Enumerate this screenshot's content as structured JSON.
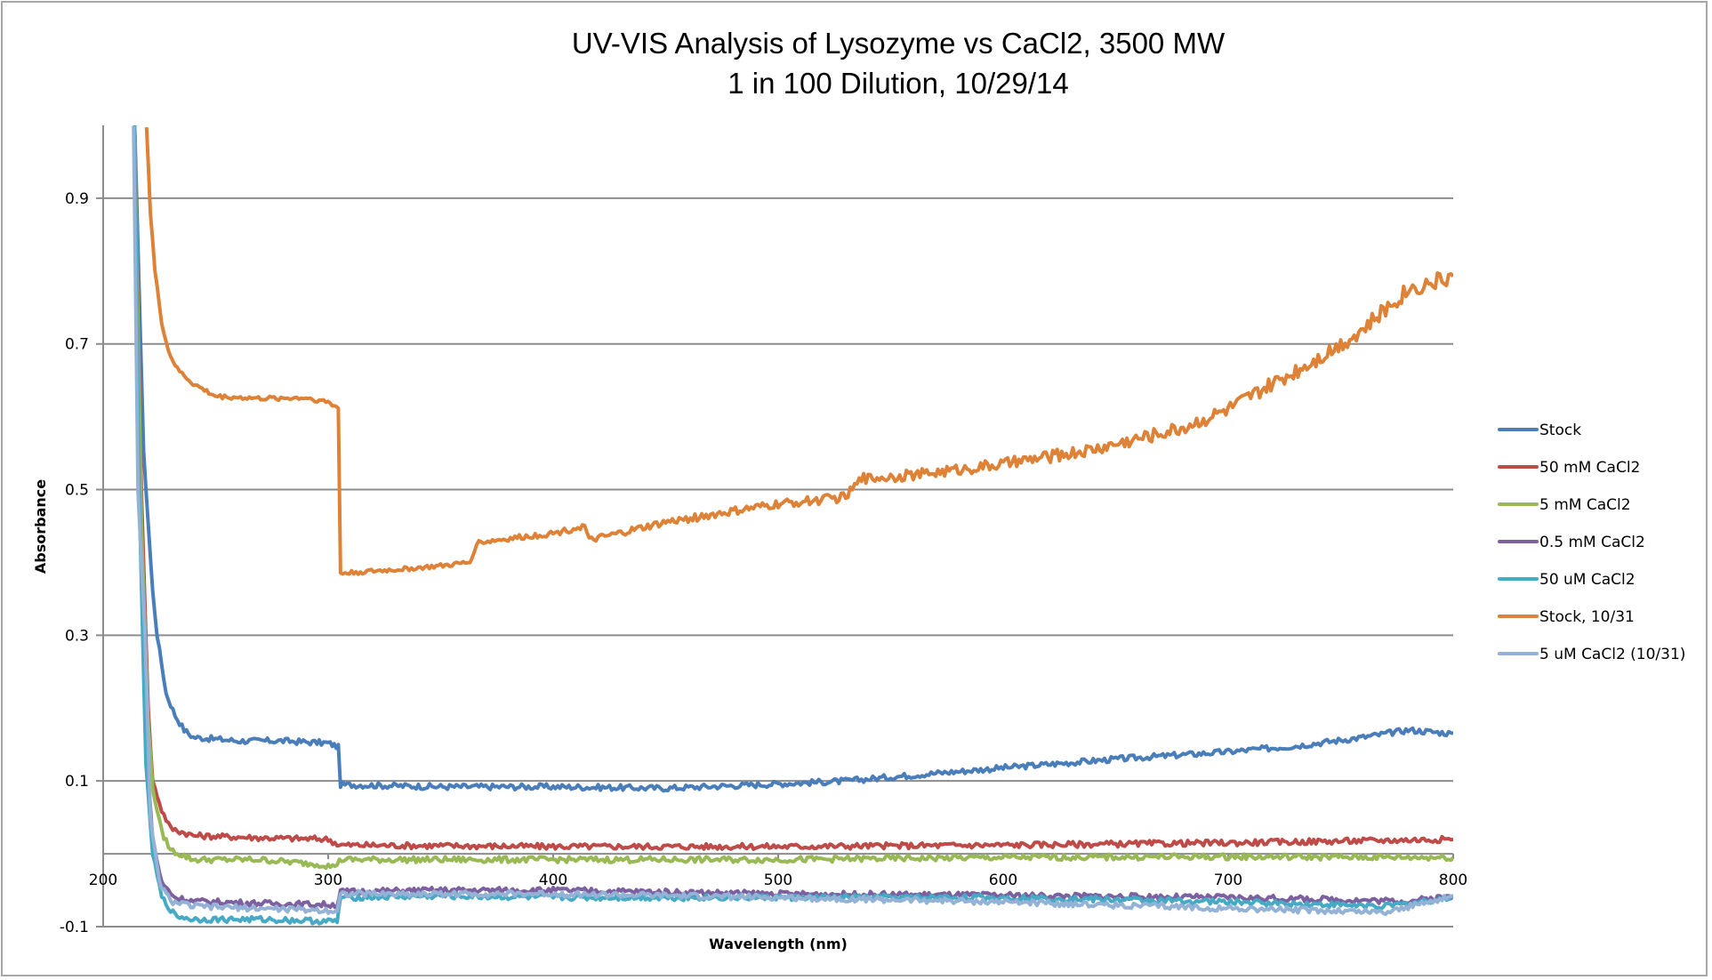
{
  "chart_data": {
    "type": "line",
    "title": "UV-VIS Analysis of Lysozyme vs CaCl2, 3500 MW",
    "subtitle": "1 in 100 Dilution, 10/29/14",
    "xlabel": "Wavelength (nm)",
    "ylabel": "Absorbance",
    "xlim": [
      200,
      800
    ],
    "ylim": [
      -0.1,
      1.0
    ],
    "x_ticks": [
      "200",
      "300",
      "400",
      "500",
      "600",
      "700",
      "800"
    ],
    "y_ticks": [
      "-0.1",
      "0.1",
      "0.3",
      "0.5",
      "0.7",
      "0.9"
    ],
    "grid": "horizontal",
    "legend_position": "right",
    "series": [
      {
        "name": "Stock",
        "color": "#4A7EBB",
        "points": [
          [
            214,
            1.0
          ],
          [
            218,
            0.55
          ],
          [
            222,
            0.36
          ],
          [
            224,
            0.3
          ],
          [
            228,
            0.22
          ],
          [
            232,
            0.19
          ],
          [
            236,
            0.17
          ],
          [
            240,
            0.16
          ],
          [
            260,
            0.155
          ],
          [
            280,
            0.155
          ],
          [
            300,
            0.152
          ],
          [
            304.5,
            0.147
          ],
          [
            305.5,
            0.095
          ],
          [
            350,
            0.092
          ],
          [
            400,
            0.092
          ],
          [
            450,
            0.09
          ],
          [
            500,
            0.096
          ],
          [
            530,
            0.1
          ],
          [
            560,
            0.108
          ],
          [
            600,
            0.118
          ],
          [
            650,
            0.13
          ],
          [
            700,
            0.14
          ],
          [
            730,
            0.148
          ],
          [
            760,
            0.16
          ],
          [
            780,
            0.17
          ],
          [
            800,
            0.165
          ]
        ]
      },
      {
        "name": "50 mM CaCl2",
        "color": "#BE4B48",
        "points": [
          [
            214,
            1.0
          ],
          [
            217,
            0.5
          ],
          [
            220,
            0.2
          ],
          [
            222,
            0.1
          ],
          [
            226,
            0.06
          ],
          [
            230,
            0.035
          ],
          [
            240,
            0.025
          ],
          [
            270,
            0.022
          ],
          [
            300,
            0.02
          ],
          [
            305,
            0.012
          ],
          [
            400,
            0.01
          ],
          [
            500,
            0.01
          ],
          [
            600,
            0.012
          ],
          [
            700,
            0.015
          ],
          [
            800,
            0.02
          ]
        ]
      },
      {
        "name": "5 mM CaCl2",
        "color": "#98B954",
        "points": [
          [
            214,
            1.0
          ],
          [
            217,
            0.45
          ],
          [
            220,
            0.18
          ],
          [
            222,
            0.09
          ],
          [
            226,
            0.03
          ],
          [
            230,
            0.005
          ],
          [
            240,
            -0.008
          ],
          [
            270,
            -0.008
          ],
          [
            298,
            -0.015
          ],
          [
            302,
            -0.018
          ],
          [
            306,
            -0.008
          ],
          [
            400,
            -0.008
          ],
          [
            500,
            -0.008
          ],
          [
            600,
            -0.005
          ],
          [
            700,
            -0.004
          ],
          [
            800,
            -0.005
          ]
        ]
      },
      {
        "name": "0.5 mM CaCl2",
        "color": "#7D60A0",
        "points": [
          [
            214,
            1.0
          ],
          [
            216,
            0.5
          ],
          [
            219,
            0.15
          ],
          [
            222,
            0.02
          ],
          [
            226,
            -0.04
          ],
          [
            232,
            -0.06
          ],
          [
            240,
            -0.065
          ],
          [
            270,
            -0.068
          ],
          [
            304,
            -0.07
          ],
          [
            305.5,
            -0.052
          ],
          [
            350,
            -0.05
          ],
          [
            400,
            -0.05
          ],
          [
            500,
            -0.055
          ],
          [
            600,
            -0.057
          ],
          [
            700,
            -0.06
          ],
          [
            780,
            -0.065
          ],
          [
            800,
            -0.058
          ]
        ]
      },
      {
        "name": "50 uM CaCl2",
        "color": "#46AAC5",
        "points": [
          [
            214,
            1.0
          ],
          [
            216,
            0.5
          ],
          [
            219,
            0.12
          ],
          [
            222,
            0.0
          ],
          [
            226,
            -0.06
          ],
          [
            232,
            -0.085
          ],
          [
            240,
            -0.09
          ],
          [
            270,
            -0.09
          ],
          [
            304,
            -0.093
          ],
          [
            305.5,
            -0.06
          ],
          [
            350,
            -0.058
          ],
          [
            400,
            -0.06
          ],
          [
            500,
            -0.06
          ],
          [
            600,
            -0.06
          ],
          [
            700,
            -0.066
          ],
          [
            770,
            -0.072
          ],
          [
            800,
            -0.06
          ]
        ]
      },
      {
        "name": "Stock, 10/31",
        "color": "#DD8236",
        "points": [
          [
            219.3,
            1.0
          ],
          [
            221,
            0.88
          ],
          [
            223,
            0.8
          ],
          [
            226,
            0.73
          ],
          [
            229,
            0.69
          ],
          [
            233,
            0.665
          ],
          [
            240,
            0.645
          ],
          [
            250,
            0.628
          ],
          [
            270,
            0.625
          ],
          [
            290,
            0.626
          ],
          [
            300,
            0.62
          ],
          [
            304.5,
            0.612
          ],
          [
            305.5,
            0.385
          ],
          [
            330,
            0.39
          ],
          [
            350,
            0.395
          ],
          [
            363,
            0.4
          ],
          [
            366,
            0.427
          ],
          [
            400,
            0.44
          ],
          [
            414,
            0.45
          ],
          [
            416,
            0.43
          ],
          [
            450,
            0.455
          ],
          [
            480,
            0.47
          ],
          [
            500,
            0.48
          ],
          [
            530,
            0.49
          ],
          [
            537,
            0.515
          ],
          [
            560,
            0.52
          ],
          [
            600,
            0.535
          ],
          [
            640,
            0.555
          ],
          [
            680,
            0.585
          ],
          [
            700,
            0.61
          ],
          [
            720,
            0.645
          ],
          [
            745,
            0.69
          ],
          [
            760,
            0.72
          ],
          [
            780,
            0.775
          ],
          [
            800,
            0.793
          ]
        ]
      },
      {
        "name": "5 uM CaCl2 (10/31)",
        "color": "#94B2D6",
        "points": [
          [
            213.5,
            1.0
          ],
          [
            215.5,
            0.5
          ],
          [
            218.6,
            0.3
          ],
          [
            221,
            0.05
          ],
          [
            225,
            -0.04
          ],
          [
            230,
            -0.065
          ],
          [
            240,
            -0.072
          ],
          [
            270,
            -0.075
          ],
          [
            304,
            -0.078
          ],
          [
            305.5,
            -0.055
          ],
          [
            350,
            -0.055
          ],
          [
            400,
            -0.055
          ],
          [
            500,
            -0.06
          ],
          [
            600,
            -0.066
          ],
          [
            700,
            -0.075
          ],
          [
            770,
            -0.08
          ],
          [
            800,
            -0.058
          ]
        ]
      }
    ]
  }
}
